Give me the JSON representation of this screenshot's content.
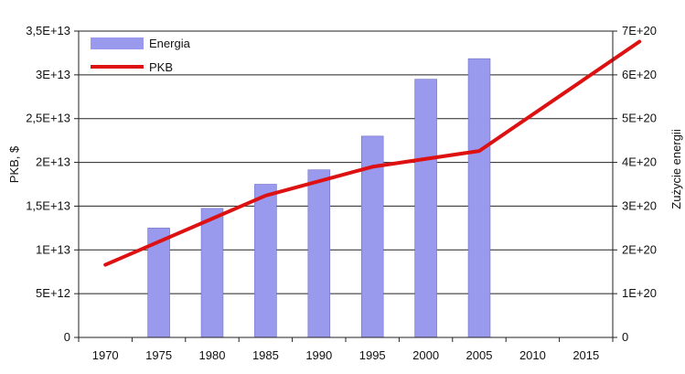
{
  "chart_data": {
    "type": "bar+line",
    "categories": [
      "1970",
      "1975",
      "1980",
      "1985",
      "1990",
      "1995",
      "2000",
      "2005",
      "2010",
      "2015"
    ],
    "left_axis": {
      "label": "PKB, $",
      "ylim": [
        0,
        35000000000000
      ],
      "ticks": [
        {
          "value": 0,
          "label": "0"
        },
        {
          "value": 5000000000000,
          "label": "5E+12"
        },
        {
          "value": 10000000000000,
          "label": "1E+13"
        },
        {
          "value": 15000000000000,
          "label": "1,5E+13"
        },
        {
          "value": 20000000000000,
          "label": "2E+13"
        },
        {
          "value": 25000000000000,
          "label": "2,5E+13"
        },
        {
          "value": 30000000000000,
          "label": "3E+13"
        },
        {
          "value": 35000000000000,
          "label": "3,5E+13"
        }
      ]
    },
    "right_axis": {
      "label": "Zużycie energii",
      "ylim": [
        0,
        7e+20
      ],
      "ticks": [
        {
          "value": 0,
          "label": "0"
        },
        {
          "value": 1e+20,
          "label": "1E+20"
        },
        {
          "value": 2e+20,
          "label": "2E+20"
        },
        {
          "value": 3e+20,
          "label": "3E+20"
        },
        {
          "value": 4e+20,
          "label": "4E+20"
        },
        {
          "value": 5e+20,
          "label": "5E+20"
        },
        {
          "value": 6e+20,
          "label": "6E+20"
        },
        {
          "value": 7e+20,
          "label": "7E+20"
        }
      ]
    },
    "series": [
      {
        "name": "Energia",
        "type": "bar",
        "axis": "right",
        "color": "#9999ee",
        "points": [
          {
            "x": "1975",
            "y": 2.5e+20
          },
          {
            "x": "1980",
            "y": 2.95e+20
          },
          {
            "x": "1985",
            "y": 3.5e+20
          },
          {
            "x": "1990",
            "y": 3.83e+20
          },
          {
            "x": "1995",
            "y": 4.6e+20
          },
          {
            "x": "2000",
            "y": 5.9e+20
          },
          {
            "x": "2005",
            "y": 6.37e+20
          }
        ]
      },
      {
        "name": "PKB",
        "type": "line",
        "axis": "left",
        "color": "#dd1111",
        "points": [
          {
            "x": 1970,
            "y": 8300000000000
          },
          {
            "x": 1985,
            "y": 16200000000000
          },
          {
            "x": 1995,
            "y": 19500000000000
          },
          {
            "x": 2005,
            "y": 21300000000000
          },
          {
            "x": 2020,
            "y": 33800000000000
          }
        ]
      }
    ],
    "grid": true,
    "legend_position": "top-left"
  }
}
